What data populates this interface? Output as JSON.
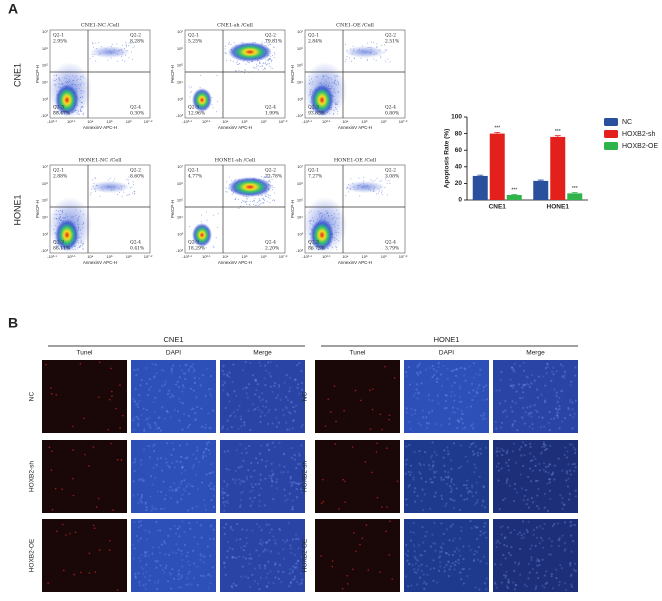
{
  "panel_a": {
    "label": "A",
    "row_labels": [
      "CNE1",
      "HONE1"
    ],
    "flow": {
      "y_label": "PerCP-H",
      "x_label": "AnnexinV APC-H",
      "xticks": [
        "-10³·¹",
        "10³·¹",
        "10⁴",
        "10⁵",
        "10⁶",
        "10⁷·²"
      ],
      "yticks": [
        "-10³",
        "10³",
        "10⁴",
        "10⁵",
        "10⁶",
        "10⁷"
      ],
      "plots": [
        {
          "title": "CNE1-NC /Cell",
          "quadrants": [
            {
              "name": "Q2-1",
              "percent": "2.95%"
            },
            {
              "name": "Q2-2",
              "percent": "8.28%"
            },
            {
              "name": "Q2-3",
              "percent": "88.47%"
            },
            {
              "name": "Q2-4",
              "percent": "0.30%"
            }
          ]
        },
        {
          "title": "CNE1-sh /Cell",
          "quadrants": [
            {
              "name": "Q2-1",
              "percent": "5.25%"
            },
            {
              "name": "Q2-2",
              "percent": "79.81%"
            },
            {
              "name": "Q2-3",
              "percent": "12.96%"
            },
            {
              "name": "Q2-4",
              "percent": "1.99%"
            }
          ]
        },
        {
          "title": "CNE1-OE /Cell",
          "quadrants": [
            {
              "name": "Q2-1",
              "percent": "2.84%"
            },
            {
              "name": "Q2-2",
              "percent": "2.51%"
            },
            {
              "name": "Q2-3",
              "percent": "93.85%"
            },
            {
              "name": "Q2-4",
              "percent": "0.80%"
            }
          ]
        },
        {
          "title": "HONE1-NC /Cell",
          "quadrants": [
            {
              "name": "Q2-1",
              "percent": "2.88%"
            },
            {
              "name": "Q2-2",
              "percent": "8.60%"
            },
            {
              "name": "Q2-3",
              "percent": "88.11%"
            },
            {
              "name": "Q2-4",
              "percent": "0.41%"
            }
          ]
        },
        {
          "title": "HONE1-sh /Cell",
          "quadrants": [
            {
              "name": "Q2-1",
              "percent": "4.77%"
            },
            {
              "name": "Q2-2",
              "percent": "72.78%"
            },
            {
              "name": "Q2-3",
              "percent": "18.29%"
            },
            {
              "name": "Q2-4",
              "percent": "2.20%"
            }
          ]
        },
        {
          "title": "HONE1-OE /Cell",
          "quadrants": [
            {
              "name": "Q2-1",
              "percent": "7.27%"
            },
            {
              "name": "Q2-2",
              "percent": "3.08%"
            },
            {
              "name": "Q2-3",
              "percent": "86.75%"
            },
            {
              "name": "Q2-4",
              "percent": "3.79%"
            }
          ]
        }
      ]
    }
  },
  "chart_data": {
    "type": "bar",
    "y_label": "Apoptosis Rate (%)",
    "categories": [
      "CNE1",
      "HONE1"
    ],
    "series": [
      {
        "name": "NC",
        "color": "#2a4f9c",
        "values": [
          29,
          23
        ],
        "errors": [
          1,
          1
        ]
      },
      {
        "name": "HOXB2-sh",
        "color": "#e3201b",
        "values": [
          80,
          76
        ],
        "errors": [
          1.5,
          1.5
        ],
        "annotations": [
          "***",
          "***"
        ]
      },
      {
        "name": "HOXB2-OE",
        "color": "#2fb34a",
        "values": [
          6,
          8
        ],
        "errors": [
          0.8,
          1
        ],
        "annotations": [
          "***",
          "***"
        ]
      }
    ],
    "ylim": [
      0,
      100
    ],
    "yticks": [
      0,
      20,
      40,
      60,
      80,
      100
    ]
  },
  "panel_b": {
    "label": "B",
    "groups": [
      {
        "title": "CNE1",
        "columns": [
          "Tunel",
          "DAPI",
          "Merge"
        ],
        "rows": [
          "NC",
          "HOXB2-sh",
          "HOXB2-OE"
        ]
      },
      {
        "title": "HONE1",
        "columns": [
          "Tunel",
          "DAPI",
          "Merge"
        ],
        "rows": [
          "NC",
          "HOXB2-sh",
          "HOXB2-OE"
        ]
      }
    ]
  }
}
